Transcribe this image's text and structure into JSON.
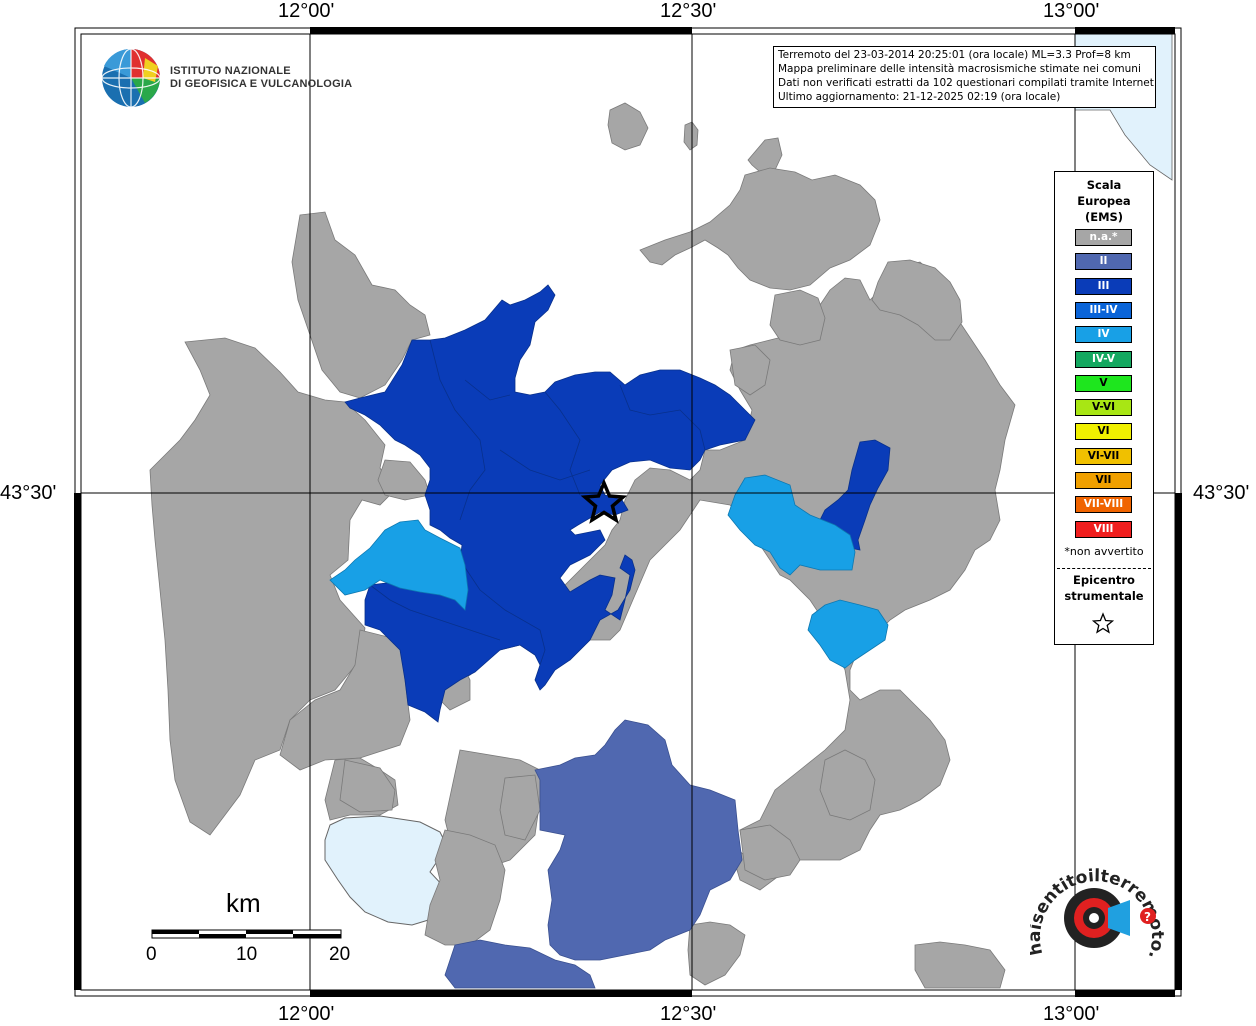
{
  "coords": {
    "top": [
      "12°00'",
      "12°30'",
      "13°00'"
    ],
    "bottom": [
      "12°00'",
      "12°30'",
      "13°00'"
    ],
    "left": "43°30'",
    "right": "43°30'"
  },
  "logo": {
    "line1": "ISTITUTO NAZIONALE",
    "line2": "DI GEOFISICA E VULCANOLOGIA"
  },
  "info": {
    "line1": "Terremoto del 23-03-2014 20:25:01 (ora locale) ML=3.3 Prof=8 km",
    "line2": "Mappa preliminare delle intensità macrosismiche stimate nei comuni",
    "line3": "Dati non verificati estratti da 102 questionari compilati tramite Internet.",
    "line4": "Ultimo aggiornamento: 21-12-2025 02:19 (ora locale)"
  },
  "legend": {
    "title1": "Scala",
    "title2": "Europea",
    "title3": "(EMS)",
    "items": [
      {
        "label": "n.a.*",
        "color": "#a6a6a6"
      },
      {
        "label": "II",
        "color": "#5068b0"
      },
      {
        "label": "III",
        "color": "#0a3cb8"
      },
      {
        "label": "III-IV",
        "color": "#0a64d8"
      },
      {
        "label": "IV",
        "color": "#18a0e6"
      },
      {
        "label": "IV-V",
        "color": "#14a860"
      },
      {
        "label": "V",
        "color": "#1ee61e"
      },
      {
        "label": "V-VI",
        "color": "#a8e614"
      },
      {
        "label": "VI",
        "color": "#f0f000"
      },
      {
        "label": "VI-VII",
        "color": "#f0c000"
      },
      {
        "label": "VII",
        "color": "#f0a000"
      },
      {
        "label": "VII-VIII",
        "color": "#f06400"
      },
      {
        "label": "VIII",
        "color": "#f01e1e"
      }
    ],
    "note": "*non avvertito",
    "epi1": "Epicentro",
    "epi2": "strumentale"
  },
  "scale": {
    "unit": "km",
    "labels": [
      "0",
      "10",
      "20"
    ]
  },
  "watermark": "haisentitoilterremoto.it",
  "colors": {
    "na": "#a6a6a6",
    "II": "#5068b0",
    "III": "#0a3cb8",
    "IV": "#18a0e6",
    "water": "#e1f2fc"
  }
}
